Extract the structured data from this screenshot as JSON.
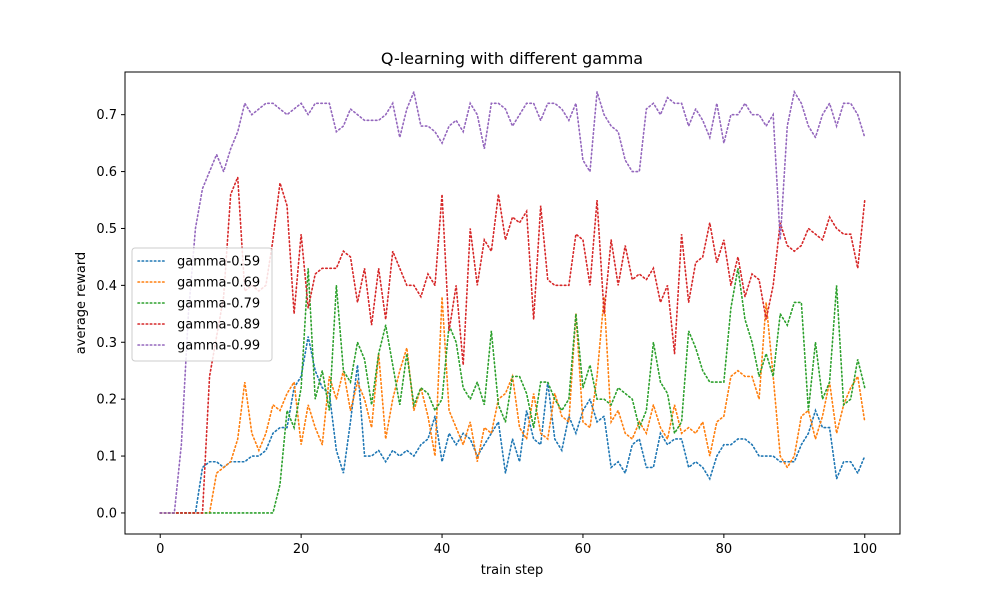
{
  "chart_data": {
    "type": "line",
    "title": "Q-learning with different gamma",
    "xlabel": "train step",
    "ylabel": "average reward",
    "xlim": [
      -5,
      105
    ],
    "ylim": [
      -0.037,
      0.775
    ],
    "xticks": [
      0,
      20,
      40,
      60,
      80,
      100
    ],
    "yticks": [
      0.0,
      0.1,
      0.2,
      0.3,
      0.4,
      0.5,
      0.6,
      0.7
    ],
    "grid": false,
    "legend_position": "center-left",
    "line_style": "dotted",
    "x": [
      0,
      1,
      2,
      3,
      4,
      5,
      6,
      7,
      8,
      9,
      10,
      11,
      12,
      13,
      14,
      15,
      16,
      17,
      18,
      19,
      20,
      21,
      22,
      23,
      24,
      25,
      26,
      27,
      28,
      29,
      30,
      31,
      32,
      33,
      34,
      35,
      36,
      37,
      38,
      39,
      40,
      41,
      42,
      43,
      44,
      45,
      46,
      47,
      48,
      49,
      50,
      51,
      52,
      53,
      54,
      55,
      56,
      57,
      58,
      59,
      60,
      61,
      62,
      63,
      64,
      65,
      66,
      67,
      68,
      69,
      70,
      71,
      72,
      73,
      74,
      75,
      76,
      77,
      78,
      79,
      80,
      81,
      82,
      83,
      84,
      85,
      86,
      87,
      88,
      89,
      90,
      91,
      92,
      93,
      94,
      95,
      96,
      97,
      98,
      99,
      100
    ],
    "series": [
      {
        "name": "gamma-0.59",
        "color": "#1f77b4",
        "values": [
          0,
          0,
          0,
          0,
          0,
          0,
          0.08,
          0.09,
          0.09,
          0.08,
          0.09,
          0.09,
          0.09,
          0.1,
          0.1,
          0.11,
          0.14,
          0.15,
          0.15,
          0.22,
          0.24,
          0.31,
          0.25,
          0.22,
          0.21,
          0.11,
          0.07,
          0.16,
          0.26,
          0.1,
          0.1,
          0.11,
          0.09,
          0.11,
          0.1,
          0.11,
          0.1,
          0.12,
          0.13,
          0.17,
          0.09,
          0.14,
          0.12,
          0.14,
          0.13,
          0.1,
          0.12,
          0.14,
          0.16,
          0.07,
          0.13,
          0.09,
          0.18,
          0.13,
          0.12,
          0.23,
          0.13,
          0.11,
          0.17,
          0.14,
          0.18,
          0.2,
          0.16,
          0.17,
          0.08,
          0.09,
          0.07,
          0.12,
          0.13,
          0.08,
          0.08,
          0.14,
          0.12,
          0.13,
          0.13,
          0.08,
          0.09,
          0.08,
          0.06,
          0.1,
          0.12,
          0.12,
          0.13,
          0.13,
          0.12,
          0.1,
          0.1,
          0.1,
          0.09,
          0.09,
          0.09,
          0.12,
          0.14,
          0.18,
          0.15,
          0.15,
          0.06,
          0.09,
          0.09,
          0.07,
          0.1
        ]
      },
      {
        "name": "gamma-0.69",
        "color": "#ff7f0e",
        "values": [
          0,
          0,
          0,
          0,
          0,
          0,
          0,
          0,
          0.07,
          0.08,
          0.09,
          0.13,
          0.23,
          0.14,
          0.11,
          0.14,
          0.19,
          0.18,
          0.21,
          0.23,
          0.12,
          0.19,
          0.15,
          0.12,
          0.24,
          0.2,
          0.25,
          0.18,
          0.23,
          0.2,
          0.15,
          0.28,
          0.13,
          0.2,
          0.25,
          0.29,
          0.18,
          0.22,
          0.17,
          0.1,
          0.38,
          0.18,
          0.15,
          0.12,
          0.16,
          0.09,
          0.15,
          0.14,
          0.2,
          0.21,
          0.24,
          0.15,
          0.13,
          0.21,
          0.14,
          0.13,
          0.21,
          0.17,
          0.16,
          0.35,
          0.16,
          0.15,
          0.24,
          0.38,
          0.16,
          0.18,
          0.14,
          0.13,
          0.16,
          0.14,
          0.19,
          0.15,
          0.13,
          0.19,
          0.14,
          0.15,
          0.14,
          0.16,
          0.1,
          0.16,
          0.17,
          0.24,
          0.25,
          0.24,
          0.24,
          0.2,
          0.37,
          0.24,
          0.1,
          0.08,
          0.1,
          0.17,
          0.18,
          0.13,
          0.17,
          0.23,
          0.14,
          0.19,
          0.22,
          0.24,
          0.16
        ]
      },
      {
        "name": "gamma-0.79",
        "color": "#2ca02c",
        "values": [
          0,
          0,
          0,
          0,
          0,
          0,
          0,
          0,
          0,
          0,
          0,
          0,
          0,
          0,
          0,
          0,
          0,
          0.05,
          0.18,
          0.15,
          0.22,
          0.43,
          0.2,
          0.25,
          0.18,
          0.4,
          0.25,
          0.23,
          0.3,
          0.27,
          0.19,
          0.28,
          0.33,
          0.26,
          0.19,
          0.28,
          0.19,
          0.22,
          0.21,
          0.18,
          0.2,
          0.33,
          0.3,
          0.22,
          0.2,
          0.23,
          0.19,
          0.32,
          0.19,
          0.16,
          0.24,
          0.24,
          0.21,
          0.15,
          0.23,
          0.23,
          0.2,
          0.18,
          0.2,
          0.35,
          0.22,
          0.26,
          0.2,
          0.2,
          0.19,
          0.22,
          0.21,
          0.2,
          0.15,
          0.18,
          0.3,
          0.23,
          0.21,
          0.14,
          0.16,
          0.32,
          0.29,
          0.25,
          0.23,
          0.23,
          0.23,
          0.36,
          0.43,
          0.34,
          0.3,
          0.24,
          0.28,
          0.24,
          0.35,
          0.33,
          0.37,
          0.37,
          0.18,
          0.3,
          0.2,
          0.23,
          0.4,
          0.19,
          0.2,
          0.27,
          0.22
        ]
      },
      {
        "name": "gamma-0.89",
        "color": "#d62728",
        "values": [
          0,
          0,
          0,
          0,
          0,
          0,
          0,
          0.24,
          0.31,
          0.38,
          0.56,
          0.59,
          0.39,
          0.4,
          0.39,
          0.4,
          0.48,
          0.58,
          0.54,
          0.35,
          0.49,
          0.36,
          0.42,
          0.43,
          0.43,
          0.43,
          0.46,
          0.45,
          0.37,
          0.43,
          0.33,
          0.43,
          0.34,
          0.46,
          0.43,
          0.4,
          0.4,
          0.38,
          0.42,
          0.4,
          0.56,
          0.32,
          0.4,
          0.26,
          0.5,
          0.4,
          0.48,
          0.46,
          0.56,
          0.48,
          0.52,
          0.51,
          0.53,
          0.34,
          0.54,
          0.41,
          0.4,
          0.4,
          0.4,
          0.49,
          0.48,
          0.4,
          0.55,
          0.35,
          0.48,
          0.4,
          0.47,
          0.41,
          0.42,
          0.41,
          0.43,
          0.37,
          0.4,
          0.28,
          0.49,
          0.37,
          0.44,
          0.45,
          0.51,
          0.44,
          0.48,
          0.4,
          0.45,
          0.38,
          0.42,
          0.41,
          0.34,
          0.4,
          0.51,
          0.47,
          0.46,
          0.47,
          0.5,
          0.49,
          0.48,
          0.52,
          0.5,
          0.49,
          0.49,
          0.43,
          0.55
        ]
      },
      {
        "name": "gamma-0.99",
        "color": "#9467bd",
        "values": [
          0,
          0,
          0,
          0.12,
          0.35,
          0.5,
          0.57,
          0.6,
          0.63,
          0.6,
          0.64,
          0.67,
          0.72,
          0.7,
          0.71,
          0.72,
          0.72,
          0.71,
          0.7,
          0.71,
          0.72,
          0.7,
          0.72,
          0.72,
          0.72,
          0.67,
          0.68,
          0.71,
          0.7,
          0.69,
          0.69,
          0.69,
          0.7,
          0.72,
          0.66,
          0.71,
          0.74,
          0.68,
          0.68,
          0.67,
          0.65,
          0.68,
          0.69,
          0.67,
          0.72,
          0.7,
          0.64,
          0.72,
          0.72,
          0.71,
          0.68,
          0.7,
          0.72,
          0.72,
          0.69,
          0.72,
          0.72,
          0.71,
          0.69,
          0.72,
          0.62,
          0.6,
          0.74,
          0.7,
          0.68,
          0.67,
          0.62,
          0.6,
          0.6,
          0.71,
          0.72,
          0.7,
          0.73,
          0.72,
          0.72,
          0.68,
          0.71,
          0.69,
          0.66,
          0.72,
          0.65,
          0.7,
          0.7,
          0.72,
          0.7,
          0.7,
          0.68,
          0.7,
          0.48,
          0.68,
          0.74,
          0.72,
          0.68,
          0.66,
          0.7,
          0.72,
          0.68,
          0.72,
          0.72,
          0.7,
          0.66
        ]
      }
    ]
  }
}
